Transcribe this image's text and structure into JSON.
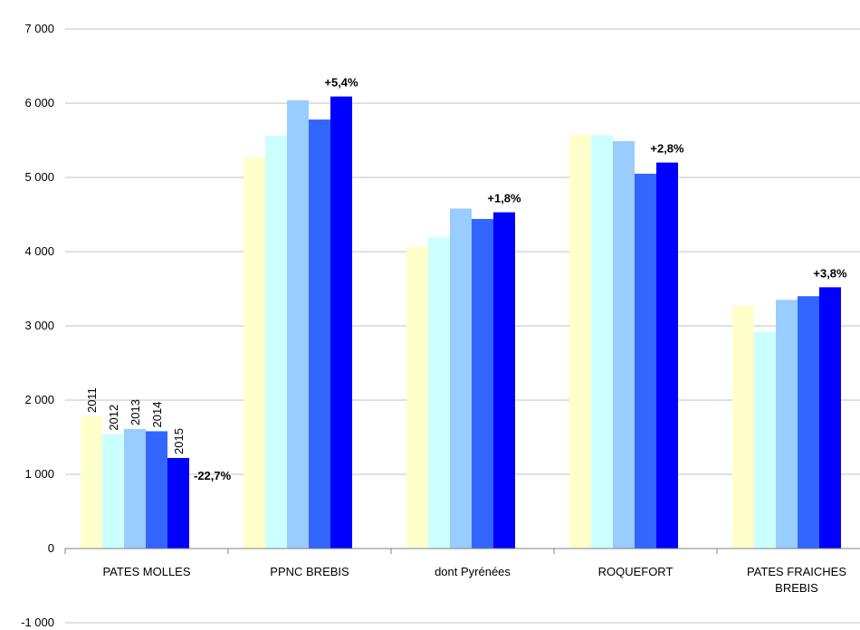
{
  "chart_data": {
    "type": "bar",
    "categories": [
      [
        "PATES MOLLES"
      ],
      [
        "PPNC BREBIS"
      ],
      [
        "dont Pyrénées"
      ],
      [
        "ROQUEFORT"
      ],
      [
        "PATES FRAICHES",
        "BREBIS"
      ]
    ],
    "series": [
      {
        "name": "2011",
        "color": "#FFFFCC",
        "values": [
          1780,
          5270,
          4070,
          5570,
          3270
        ]
      },
      {
        "name": "2012",
        "color": "#CCFFFF",
        "values": [
          1540,
          5560,
          4190,
          5570,
          2920
        ]
      },
      {
        "name": "2013",
        "color": "#99CCFF",
        "values": [
          1610,
          6040,
          4580,
          5490,
          3350
        ]
      },
      {
        "name": "2014",
        "color": "#3366FF",
        "values": [
          1580,
          5780,
          4440,
          5050,
          3400
        ]
      },
      {
        "name": "2015",
        "color": "#0000FF",
        "values": [
          1220,
          6090,
          4530,
          5200,
          3520
        ]
      }
    ],
    "annotations": [
      "-22,7%",
      "+5,4%",
      "+1,8%",
      "+2,8%",
      "+3,8%"
    ],
    "yticks": [
      -1000,
      0,
      1000,
      2000,
      3000,
      4000,
      5000,
      6000,
      7000
    ],
    "ytick_labels": [
      "-1 000",
      "0",
      "1 000",
      "2 000",
      "3 000",
      "4 000",
      "5 000",
      "6 000",
      "7 000"
    ],
    "ylim": [
      -1000,
      7000
    ],
    "grid": true,
    "legend": "none (years printed vertically on first category bars)",
    "title": "",
    "xlabel": "",
    "ylabel": ""
  }
}
